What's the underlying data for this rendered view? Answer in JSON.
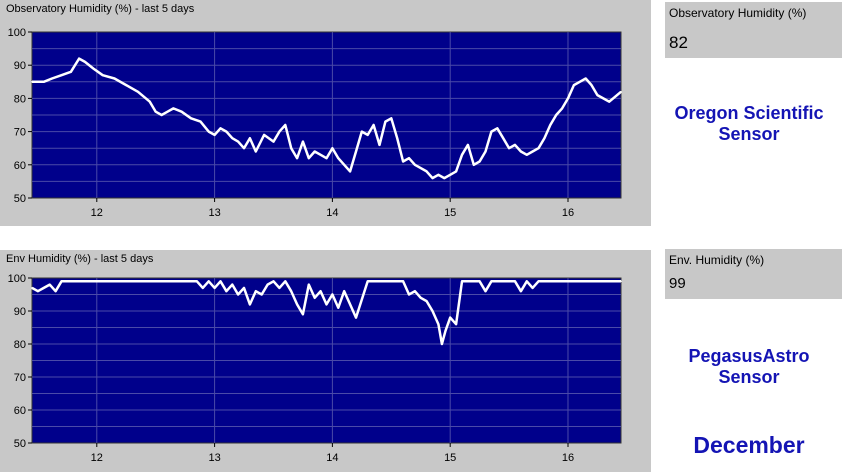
{
  "chart_data": [
    {
      "type": "line",
      "title": "Observatory Humidity (%) - last 5 days",
      "xlabel": "",
      "ylabel": "",
      "xlim": [
        11.45,
        16.45
      ],
      "ylim": [
        50,
        100
      ],
      "xticks": [
        12,
        13,
        14,
        15,
        16
      ],
      "yticks": [
        50,
        60,
        70,
        80,
        90,
        100
      ],
      "grid": true,
      "background": "#00008b",
      "line_color": "#ffffff",
      "series": [
        {
          "x": [
            11.45,
            11.55,
            11.62,
            11.7,
            11.78,
            11.85,
            11.9,
            11.97,
            12.05,
            12.15,
            12.25,
            12.35,
            12.45,
            12.5,
            12.55,
            12.6,
            12.65,
            12.72,
            12.8,
            12.88,
            12.95,
            13.0,
            13.05,
            13.1,
            13.15,
            13.2,
            13.25,
            13.3,
            13.35,
            13.42,
            13.5,
            13.55,
            13.6,
            13.65,
            13.7,
            13.75,
            13.8,
            13.85,
            13.9,
            13.95,
            14.0,
            14.05,
            14.1,
            14.15,
            14.2,
            14.25,
            14.3,
            14.35,
            14.4,
            14.45,
            14.5,
            14.55,
            14.6,
            14.65,
            14.7,
            14.75,
            14.8,
            14.85,
            14.9,
            14.95,
            15.0,
            15.05,
            15.1,
            15.15,
            15.2,
            15.25,
            15.3,
            15.35,
            15.4,
            15.45,
            15.5,
            15.55,
            15.6,
            15.65,
            15.7,
            15.75,
            15.8,
            15.85,
            15.9,
            15.95,
            16.0,
            16.05,
            16.1,
            16.15,
            16.2,
            16.25,
            16.3,
            16.35,
            16.45
          ],
          "y": [
            85,
            85,
            86,
            87,
            88,
            92,
            91,
            89,
            87,
            86,
            84,
            82,
            79,
            76,
            75,
            76,
            77,
            76,
            74,
            73,
            70,
            69,
            71,
            70,
            68,
            67,
            65,
            68,
            64,
            69,
            67,
            70,
            72,
            65,
            62,
            67,
            62,
            64,
            63,
            62,
            65,
            62,
            60,
            58,
            64,
            70,
            69,
            72,
            66,
            73,
            74,
            68,
            61,
            62,
            60,
            59,
            58,
            56,
            57,
            56,
            57,
            58,
            63,
            66,
            60,
            61,
            64,
            70,
            71,
            68,
            65,
            66,
            64,
            63,
            64,
            65,
            68,
            72,
            75,
            77,
            80,
            84,
            85,
            86,
            84,
            81,
            80,
            79,
            82
          ]
        }
      ]
    },
    {
      "type": "line",
      "title": "Env Humidity (%) - last 5 days",
      "xlabel": "",
      "ylabel": "",
      "xlim": [
        11.45,
        16.45
      ],
      "ylim": [
        50,
        100
      ],
      "xticks": [
        12,
        13,
        14,
        15,
        16
      ],
      "yticks": [
        50,
        60,
        70,
        80,
        90,
        100
      ],
      "grid": true,
      "background": "#00008b",
      "line_color": "#ffffff",
      "series": [
        {
          "x": [
            11.45,
            11.5,
            11.55,
            11.6,
            11.65,
            11.7,
            11.72,
            11.8,
            11.9,
            12.0,
            12.5,
            12.85,
            12.9,
            12.95,
            13.0,
            13.05,
            13.1,
            13.15,
            13.2,
            13.25,
            13.3,
            13.35,
            13.4,
            13.45,
            13.5,
            13.55,
            13.6,
            13.65,
            13.7,
            13.75,
            13.8,
            13.85,
            13.9,
            13.95,
            14.0,
            14.05,
            14.1,
            14.15,
            14.2,
            14.3,
            14.5,
            14.6,
            14.65,
            14.7,
            14.75,
            14.8,
            14.85,
            14.9,
            14.93,
            14.96,
            15.0,
            15.05,
            15.1,
            15.15,
            15.2,
            15.25,
            15.3,
            15.35,
            15.4,
            15.45,
            15.55,
            15.6,
            15.65,
            15.7,
            15.75,
            15.8,
            16.0,
            16.45
          ],
          "y": [
            97,
            96,
            97,
            98,
            96,
            99,
            99,
            99,
            99,
            99,
            99,
            99,
            97,
            99,
            97,
            99,
            96,
            98,
            95,
            97,
            92,
            96,
            95,
            98,
            99,
            97,
            99,
            96,
            92,
            89,
            98,
            94,
            96,
            92,
            95,
            91,
            96,
            92,
            88,
            99,
            99,
            99,
            95,
            96,
            94,
            93,
            90,
            86,
            80,
            84,
            88,
            86,
            99,
            99,
            99,
            99,
            96,
            99,
            99,
            99,
            99,
            96,
            99,
            97,
            99,
            99,
            99,
            99
          ]
        }
      ]
    }
  ],
  "readouts": [
    {
      "title": "Observatory Humidity (%)",
      "value": "82"
    },
    {
      "title": "Env. Humidity (%)",
      "value": "99"
    }
  ],
  "labels": {
    "sensor1_line1": "Oregon Scientific",
    "sensor1_line2": "Sensor",
    "sensor2_line1": "PegasusAstro",
    "sensor2_line2": "Sensor",
    "month": "December"
  },
  "colors": {
    "panel_bg": "#c8c8c8",
    "plot_bg": "#00008b",
    "grid": "#4a4aa8",
    "line": "#ffffff",
    "label_blue": "#1414b4"
  }
}
